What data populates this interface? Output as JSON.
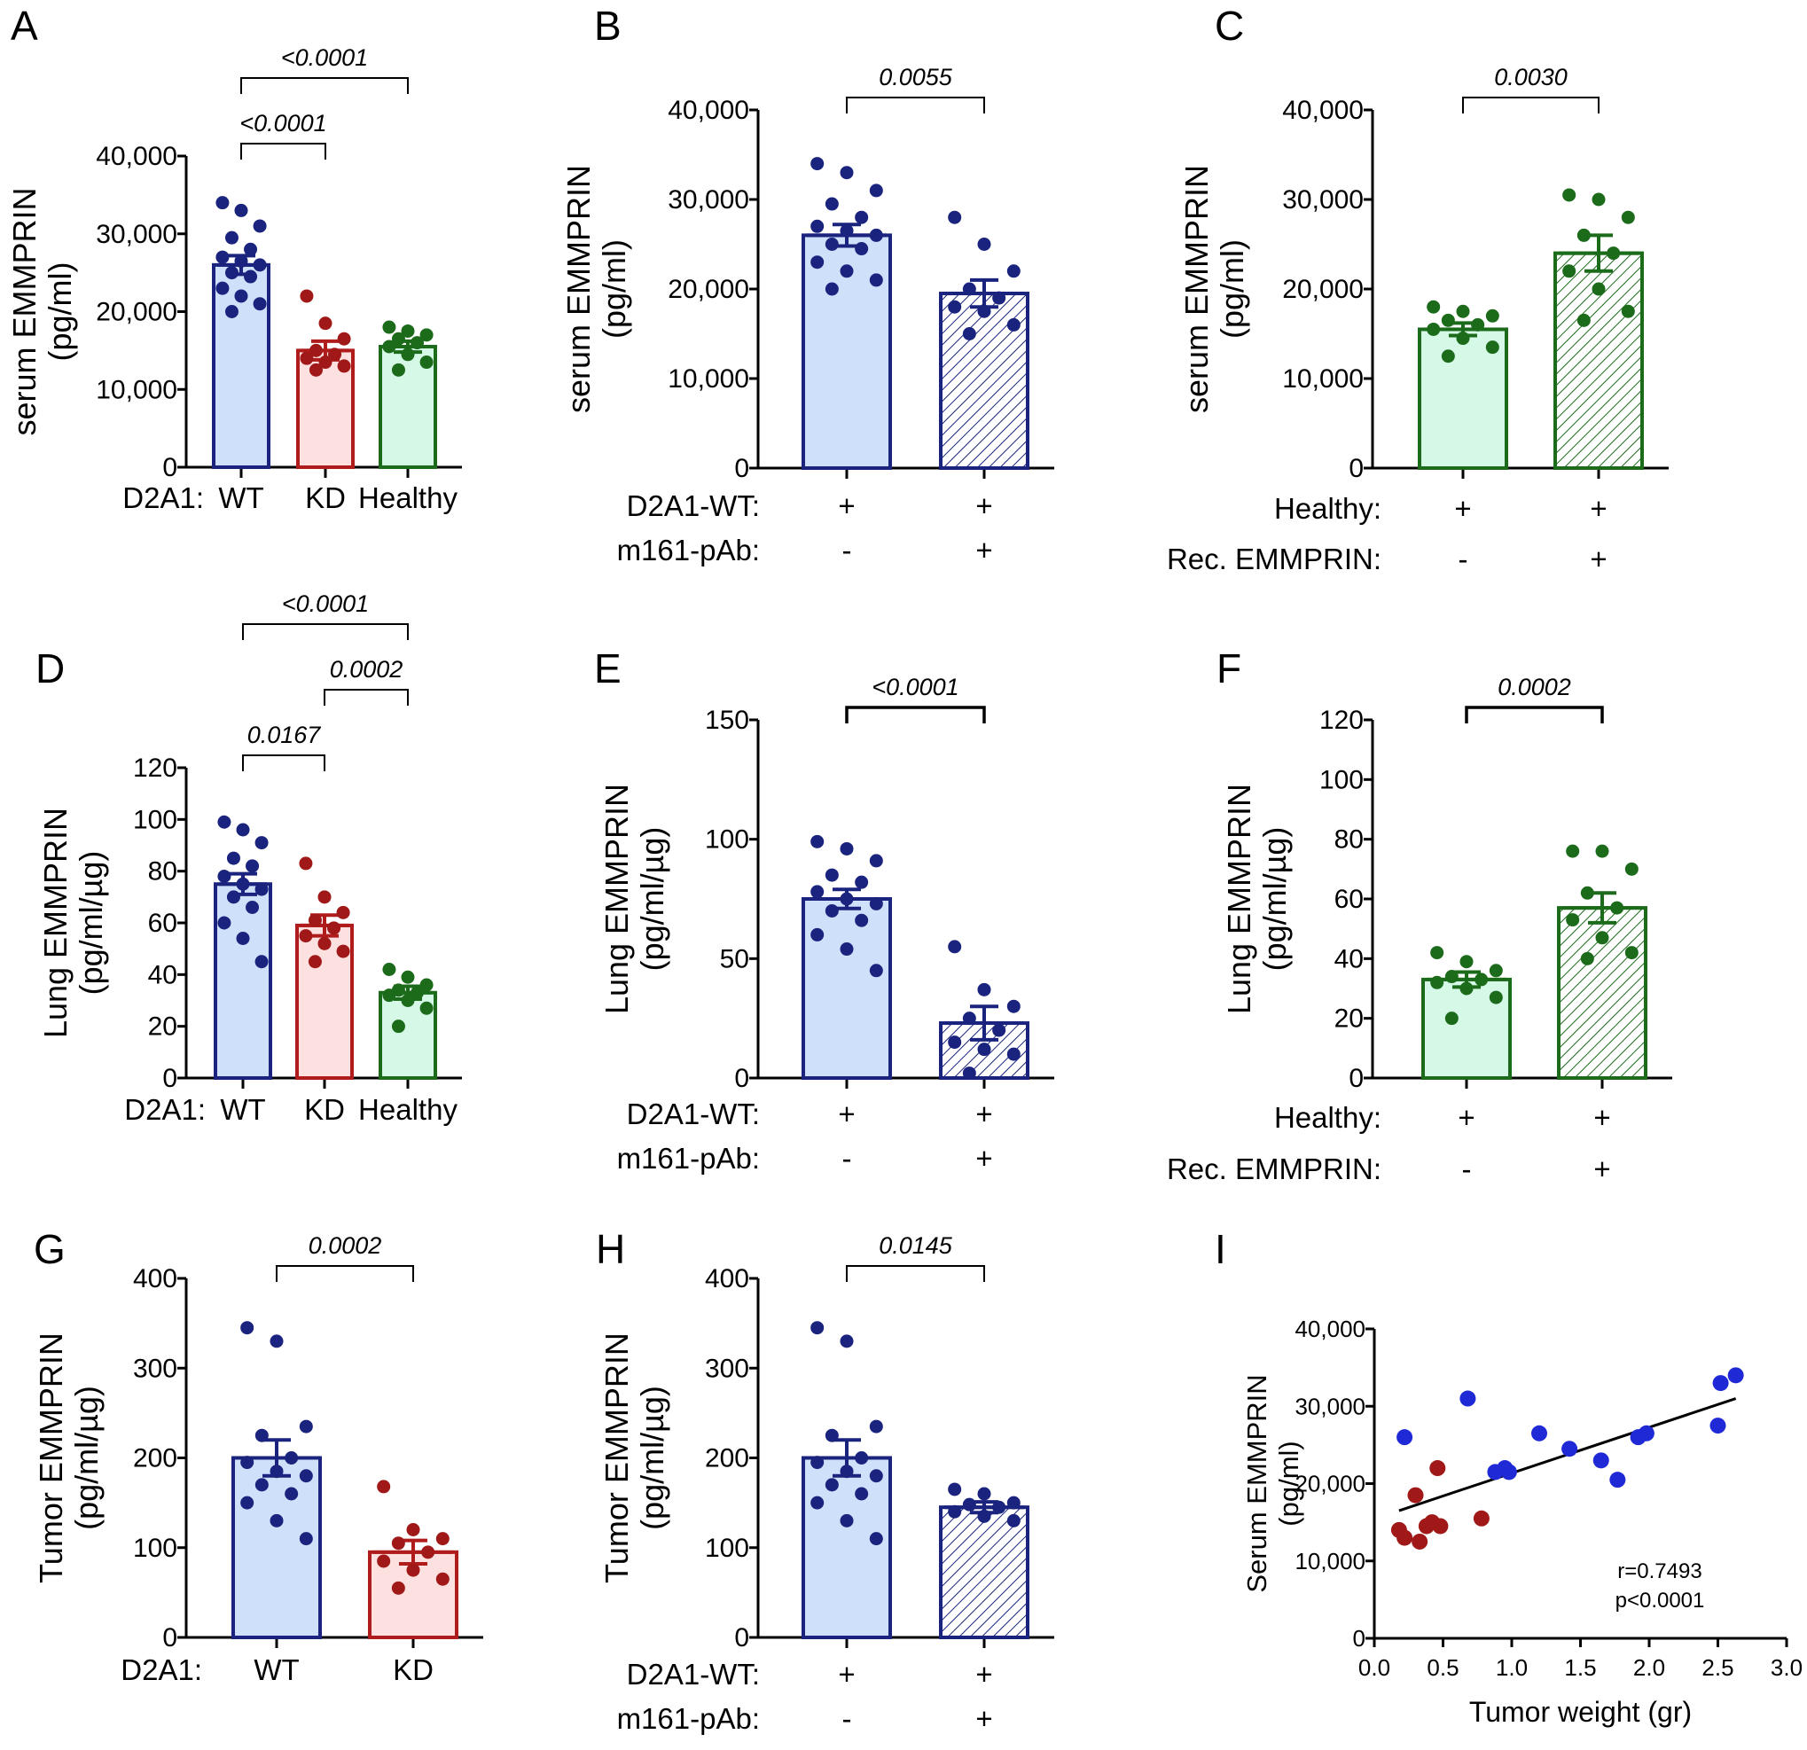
{
  "figure": {
    "colors": {
      "wt_fill": "#cfe0fb",
      "wt_stroke": "#1a237e",
      "wt_dot": "#1a237e",
      "kd_fill": "#fde0e0",
      "kd_stroke": "#b01c1c",
      "kd_dot": "#a01818",
      "healthy_fill": "#d6f8e6",
      "healthy_stroke": "#1b6b1b",
      "healthy_dot": "#1b6b1b",
      "scatter_blue": "#1f2ad6",
      "scatter_red": "#a01818"
    }
  },
  "chart_data": [
    {
      "id": "A",
      "type": "bar",
      "letter": "A",
      "ylabel": [
        "serum EMMPRIN",
        "(pg/ml)"
      ],
      "ylim": [
        0,
        40000
      ],
      "yticks": [
        0,
        10000,
        20000,
        30000,
        40000
      ],
      "ytick_labels": [
        "0",
        "10,000",
        "20,000",
        "30,000",
        "40,000"
      ],
      "row_label": "D2A1:",
      "rows": [
        [
          "WT",
          "KD",
          "Healthy"
        ]
      ],
      "categories": [
        "WT",
        "KD",
        "Healthy"
      ],
      "bars": [
        {
          "name": "WT",
          "style": "wt",
          "hatched": false,
          "mean": 26000,
          "sem": 1200,
          "points": [
            34000,
            33000,
            31000,
            29500,
            28000,
            27000,
            26500,
            26000,
            25000,
            24500,
            23000,
            22000,
            21000,
            20000
          ]
        },
        {
          "name": "KD",
          "style": "kd",
          "hatched": false,
          "mean": 15000,
          "sem": 1200,
          "points": [
            22000,
            18500,
            16500,
            15000,
            14500,
            14000,
            13500,
            13000,
            12500
          ]
        },
        {
          "name": "Healthy",
          "style": "healthy",
          "hatched": false,
          "mean": 15500,
          "sem": 700,
          "points": [
            18000,
            17500,
            17000,
            16500,
            16000,
            15500,
            14500,
            13500,
            12500
          ]
        }
      ],
      "comparisons": [
        {
          "a": 0,
          "b": 2,
          "label": "<0.0001",
          "level": 2
        },
        {
          "a": 0,
          "b": 1,
          "label": "<0.0001",
          "level": 1
        }
      ]
    },
    {
      "id": "B",
      "type": "bar",
      "letter": "B",
      "ylabel": [
        "serum EMMPRIN",
        "(pg/ml)"
      ],
      "ylim": [
        0,
        40000
      ],
      "yticks": [
        0,
        10000,
        20000,
        30000,
        40000
      ],
      "ytick_labels": [
        "0",
        "10,000",
        "20,000",
        "30,000",
        "40,000"
      ],
      "row_labels": [
        "D2A1-WT:",
        "m161-pAb:"
      ],
      "rows": [
        [
          "+",
          "+"
        ],
        [
          "-",
          "+"
        ]
      ],
      "bars": [
        {
          "name": "D2A1-WT",
          "style": "wt",
          "hatched": false,
          "mean": 26000,
          "sem": 1200,
          "points": [
            34000,
            33000,
            31000,
            29500,
            28000,
            27000,
            26500,
            26000,
            25000,
            24500,
            23000,
            22000,
            21000,
            20000
          ]
        },
        {
          "name": "D2A1-WT + m161-pAb",
          "style": "wt",
          "hatched": true,
          "mean": 19500,
          "sem": 1500,
          "points": [
            28000,
            25000,
            22000,
            20000,
            19000,
            18000,
            17500,
            16000,
            15000
          ]
        }
      ],
      "comparisons": [
        {
          "a": 0,
          "b": 1,
          "label": "0.0055",
          "level": 1
        }
      ]
    },
    {
      "id": "C",
      "type": "bar",
      "letter": "C",
      "ylabel": [
        "serum EMMPRIN",
        "(pg/ml)"
      ],
      "ylim": [
        0,
        40000
      ],
      "yticks": [
        0,
        10000,
        20000,
        30000,
        40000
      ],
      "ytick_labels": [
        "0",
        "10,000",
        "20,000",
        "30,000",
        "40,000"
      ],
      "row_labels": [
        "Healthy:",
        "Rec.  EMMPRIN:"
      ],
      "rows": [
        [
          "+",
          "+"
        ],
        [
          "-",
          "+"
        ]
      ],
      "bars": [
        {
          "name": "Healthy",
          "style": "healthy",
          "hatched": false,
          "mean": 15500,
          "sem": 700,
          "points": [
            18000,
            17500,
            17000,
            16500,
            16000,
            15500,
            14500,
            13500,
            12500
          ]
        },
        {
          "name": "Healthy + Rec. EMMPRIN",
          "style": "healthy",
          "hatched": true,
          "mean": 24000,
          "sem": 2000,
          "points": [
            30500,
            30000,
            28000,
            26000,
            24000,
            22000,
            20000,
            17500,
            16500
          ]
        }
      ],
      "comparisons": [
        {
          "a": 0,
          "b": 1,
          "label": "0.0030",
          "level": 1
        }
      ]
    },
    {
      "id": "D",
      "type": "bar",
      "letter": "D",
      "ylabel": [
        "Lung EMMPRIN",
        "(pg/ml/µg)"
      ],
      "ylim": [
        0,
        120
      ],
      "yticks": [
        0,
        20,
        40,
        60,
        80,
        100,
        120
      ],
      "ytick_labels": [
        "0",
        "20",
        "40",
        "60",
        "80",
        "100",
        "120"
      ],
      "row_label": "D2A1:",
      "rows": [
        [
          "WT",
          "KD",
          "Healthy"
        ]
      ],
      "bars": [
        {
          "name": "WT",
          "style": "wt",
          "hatched": false,
          "mean": 75,
          "sem": 4,
          "points": [
            99,
            96,
            91,
            85,
            82,
            78,
            75,
            73,
            70,
            66,
            60,
            54,
            45
          ]
        },
        {
          "name": "KD",
          "style": "kd",
          "hatched": false,
          "mean": 59,
          "sem": 4,
          "points": [
            83,
            70,
            64,
            61,
            58,
            55,
            52,
            49,
            45
          ]
        },
        {
          "name": "Healthy",
          "style": "healthy",
          "hatched": false,
          "mean": 33,
          "sem": 2.5,
          "points": [
            42,
            39,
            36,
            34,
            33,
            32,
            30,
            27,
            20
          ]
        }
      ],
      "comparisons": [
        {
          "a": 0,
          "b": 2,
          "label": "<0.0001",
          "level": 3
        },
        {
          "a": 1,
          "b": 2,
          "label": "0.0002",
          "level": 2
        },
        {
          "a": 0,
          "b": 1,
          "label": "0.0167",
          "level": 1
        }
      ]
    },
    {
      "id": "E",
      "type": "bar",
      "letter": "E",
      "ylabel": [
        "Lung EMMPRIN",
        "(pg/ml/µg)"
      ],
      "ylim": [
        0,
        150
      ],
      "yticks": [
        0,
        50,
        100,
        150
      ],
      "ytick_labels": [
        "0",
        "50",
        "100",
        "150"
      ],
      "row_labels": [
        "D2A1-WT:",
        "m161-pAb:"
      ],
      "rows": [
        [
          "+",
          "+"
        ],
        [
          "-",
          "+"
        ]
      ],
      "bars": [
        {
          "name": "D2A1-WT",
          "style": "wt",
          "hatched": false,
          "mean": 75,
          "sem": 4,
          "points": [
            99,
            96,
            91,
            85,
            82,
            78,
            75,
            73,
            70,
            66,
            60,
            54,
            45
          ]
        },
        {
          "name": "D2A1-WT + m161-pAb",
          "style": "wt",
          "hatched": true,
          "mean": 23,
          "sem": 7,
          "points": [
            55,
            37,
            30,
            25,
            20,
            15,
            12,
            10,
            2
          ]
        }
      ],
      "comparisons": [
        {
          "a": 0,
          "b": 1,
          "label": "<0.0001",
          "level": 1,
          "bold": true
        }
      ]
    },
    {
      "id": "F",
      "type": "bar",
      "letter": "F",
      "ylabel": [
        "Lung EMMPRIN",
        "(pg/ml/µg)"
      ],
      "ylim": [
        0,
        120
      ],
      "yticks": [
        0,
        20,
        40,
        60,
        80,
        100,
        120
      ],
      "ytick_labels": [
        "0",
        "20",
        "40",
        "60",
        "80",
        "100",
        "120"
      ],
      "row_labels": [
        "Healthy:",
        "Rec.  EMMPRIN:"
      ],
      "rows": [
        [
          "+",
          "+"
        ],
        [
          "-",
          "+"
        ]
      ],
      "bars": [
        {
          "name": "Healthy",
          "style": "healthy",
          "hatched": false,
          "mean": 33,
          "sem": 2.5,
          "points": [
            42,
            39,
            36,
            34,
            33,
            32,
            30,
            27,
            20
          ]
        },
        {
          "name": "Healthy + Rec. EMMPRIN",
          "style": "healthy",
          "hatched": true,
          "mean": 57,
          "sem": 5,
          "points": [
            76,
            76,
            70,
            62,
            57,
            53,
            47,
            42,
            40
          ]
        }
      ],
      "comparisons": [
        {
          "a": 0,
          "b": 1,
          "label": "0.0002",
          "level": 1,
          "bold": true
        }
      ]
    },
    {
      "id": "G",
      "type": "bar",
      "letter": "G",
      "ylabel": [
        "Tumor EMMPRIN",
        "(pg/ml/µg)"
      ],
      "ylim": [
        0,
        400
      ],
      "yticks": [
        0,
        100,
        200,
        300,
        400
      ],
      "ytick_labels": [
        "0",
        "100",
        "200",
        "300",
        "400"
      ],
      "row_label": "D2A1:",
      "rows": [
        [
          "WT",
          "KD"
        ]
      ],
      "bars": [
        {
          "name": "WT",
          "style": "wt",
          "hatched": false,
          "mean": 200,
          "sem": 20,
          "points": [
            345,
            330,
            235,
            225,
            200,
            195,
            185,
            180,
            170,
            160,
            150,
            130,
            110
          ]
        },
        {
          "name": "KD",
          "style": "kd",
          "hatched": false,
          "mean": 95,
          "sem": 13,
          "points": [
            168,
            120,
            110,
            105,
            95,
            85,
            75,
            65,
            55
          ]
        }
      ],
      "comparisons": [
        {
          "a": 0,
          "b": 1,
          "label": "0.0002",
          "level": 1
        }
      ]
    },
    {
      "id": "H",
      "type": "bar",
      "letter": "H",
      "ylabel": [
        "Tumor EMMPRIN",
        "(pg/ml/µg)"
      ],
      "ylim": [
        0,
        400
      ],
      "yticks": [
        0,
        100,
        200,
        300,
        400
      ],
      "ytick_labels": [
        "0",
        "100",
        "200",
        "300",
        "400"
      ],
      "row_labels": [
        "D2A1-WT:",
        "m161-pAb:"
      ],
      "rows": [
        [
          "+",
          "+"
        ],
        [
          "-",
          "+"
        ]
      ],
      "bars": [
        {
          "name": "D2A1-WT",
          "style": "wt",
          "hatched": false,
          "mean": 200,
          "sem": 20,
          "points": [
            345,
            330,
            235,
            225,
            200,
            195,
            185,
            180,
            170,
            160,
            150,
            130,
            110
          ]
        },
        {
          "name": "D2A1-WT + m161-pAb",
          "style": "wt",
          "hatched": true,
          "mean": 145,
          "sem": 6,
          "points": [
            165,
            160,
            150,
            148,
            145,
            140,
            135,
            130
          ]
        }
      ],
      "comparisons": [
        {
          "a": 0,
          "b": 1,
          "label": "0.0145",
          "level": 1
        }
      ]
    },
    {
      "id": "I",
      "type": "scatter",
      "letter": "I",
      "ylabel": [
        "Serum EMMPRIN",
        "(pg/ml)"
      ],
      "xlabel": "Tumor weight (gr)",
      "xlim": [
        0,
        3.0
      ],
      "xticks": [
        0,
        0.5,
        1.0,
        1.5,
        2.0,
        2.5,
        3.0
      ],
      "xtick_labels": [
        "0.0",
        "0.5",
        "1.0",
        "1.5",
        "2.0",
        "2.5",
        "3.0"
      ],
      "ylim": [
        0,
        40000
      ],
      "yticks": [
        0,
        10000,
        20000,
        30000,
        40000
      ],
      "ytick_labels": [
        "0",
        "10,000",
        "20,000",
        "30,000",
        "40,000"
      ],
      "series": [
        {
          "name": "WT",
          "color": "#1f2ad6",
          "x": [
            0.22,
            0.68,
            0.88,
            0.95,
            0.98,
            1.2,
            1.42,
            1.65,
            1.77,
            1.92,
            1.98,
            2.5,
            2.52,
            2.63
          ],
          "y": [
            26000,
            31000,
            21500,
            22000,
            21500,
            26500,
            24500,
            23000,
            20500,
            26000,
            26500,
            27500,
            33000,
            34000
          ]
        },
        {
          "name": "KD",
          "color": "#a01818",
          "x": [
            0.18,
            0.22,
            0.3,
            0.33,
            0.38,
            0.42,
            0.46,
            0.48,
            0.78
          ],
          "y": [
            14000,
            13000,
            18500,
            12500,
            14500,
            15000,
            22000,
            14500,
            15500
          ]
        }
      ],
      "fit": {
        "x": [
          0.18,
          2.63
        ],
        "y": [
          16500,
          31000
        ]
      },
      "annotation": [
        "r=0.7493",
        "p<0.0001"
      ]
    }
  ]
}
